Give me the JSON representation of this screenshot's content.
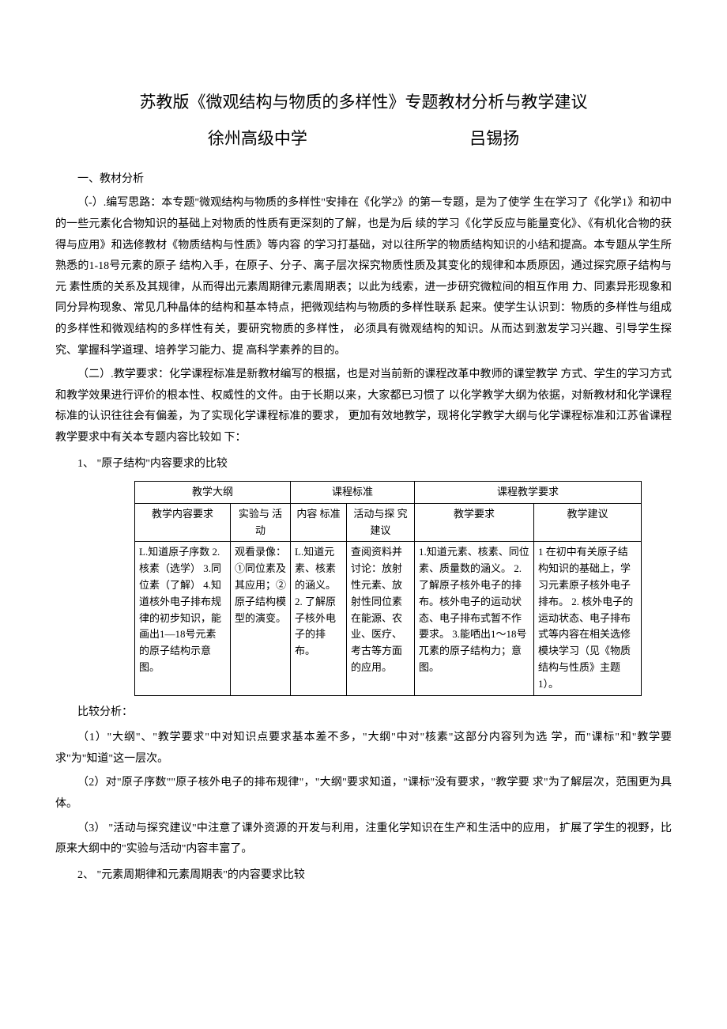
{
  "title": "苏教版《微观结构与物质的多样性》专题教材分析与教学建议",
  "subtitle_school": "徐州高级中学",
  "subtitle_author": "吕锡扬",
  "section1_head": "一、教材分析",
  "para1": "（-）.编写思路：本专题\"微观结构与物质的多样性\"安排在《化学2》的第一专题，是为了使学 生在学习了《化学1》和初中的一些元素化合物知识的基础上对物质的性质有更深刻的了解，也是为后 续的学习《化学反应与能量变化》、《有机化合物的获得与应用》和选修教材《物质结构与性质》等内容 的学习打基础，对以往所学的物质结构知识的小结和提高。本专题从学生所熟悉的1-18号元素的原子 结构入手，在原子、分子、离子层次探究物质性质及其变化的规律和本质原因，通过探究原子结构与元 素性质的关系及其规律，从而得出元素周期律元素周期表；以此为线索，进一步研究微粒间的相互作用 力、同素异形现象和同分异构现象、常见几种晶体的结构和基本特点，把微观结构与物质的多样性联系 起来。使学生认识到：物质的多样性与组成的多样性和微观结构的多样性有关，要研究物质的多样性， 必须具有微观结构的知识。从而达到激发学习兴趣、引导学生探究、掌握科学道理、培养学习能力、提 高科学素养的目的。",
  "para2": "（二）.教学要求：化学课程标准是新教材编写的根据，也是对当前新的课程改革中教师的课堂教学 方式、学生的学习方式和教学效果进行评价的根本性、权威性的文件。由于长期以来，大家都已习惯了 以化学教学大纲为依据，对新教材和化学课程标准的认识往往会有偏差，为了实现化学课程标准的要求，  更加有效地教学，现将化学教学大纲与化学课程标准和江苏省课程教学要求中有关本专题内容比较如 下：",
  "item1_head": "1、 \"原子结构\"内容要求的比较",
  "table1": {
    "head_dagang": "教学大纲",
    "head_kebiao": "课程标准",
    "head_kc_yaoqiu": "课程教学要求",
    "sub_a1": "教学内容要求",
    "sub_a2": "实验与 活动",
    "sub_b1": "内容 标准",
    "sub_b2": "活动与探 究建议",
    "sub_c1": "教学要求",
    "sub_c2": "教学建议",
    "cell_a1": "L.知道原子序数\n2.核素（选学）\n3.同位素（了解）\n4.知道核外电子排布规律的初步知识，能画出1—18号元素的原子结构示意图。",
    "cell_a2": "观看录像：①同位素及其应用；②原子结构模型的演变。",
    "cell_b1": "L.知道元素、核素的涵义。\n2. 了解原子核外电子的排布。",
    "cell_b2": "查阅资料并讨论：放射性元素、放射性同位素在能源、农业、医疗、考古等方面的应用。",
    "cell_c1": "1.知道元素、核素、同位素、质量数的涵义。\n2. 了解原子核外电子的排布。核外电子的运动状态、电子排布式暂不作要求。\n3.能哂出1～18号兀素的原子结构力；意图。",
    "cell_c2": "1 在初中有关原子结构知识的基础上，学习元素原子核外电子排布。\n2. 核外电子的运动状态、电子排布式等内容在相关选修模块学习（见《物质结构与性质》主题1）。"
  },
  "compare_head": "比较分析：",
  "compare1": "（1）\"大纲\"、\"教学要求\"中对知识点要求基本差不多，\"大纲\"中对\"核素\"这部分内容列为选 学，而\"课标\"和\"教学要求\"为\"知道\"这一层次。",
  "compare2": "（2）对\"原子序数\"\"原子核外电子的排布规律\"，\"大纲\"要求知道，\"课标\"没有要求，\"教学要 求\"为了解层次，范围更为具体。",
  "compare3": "（3）   \"活动与探究建议\"中注意了课外资源的开发与利用，注重化学知识在生产和生活中的应用， 扩展了学生的视野，比原来大纲中的\"实验与活动\"内容丰富了。",
  "item2_head": "2、 \"元素周期律和元素周期表\"的内容要求比较"
}
